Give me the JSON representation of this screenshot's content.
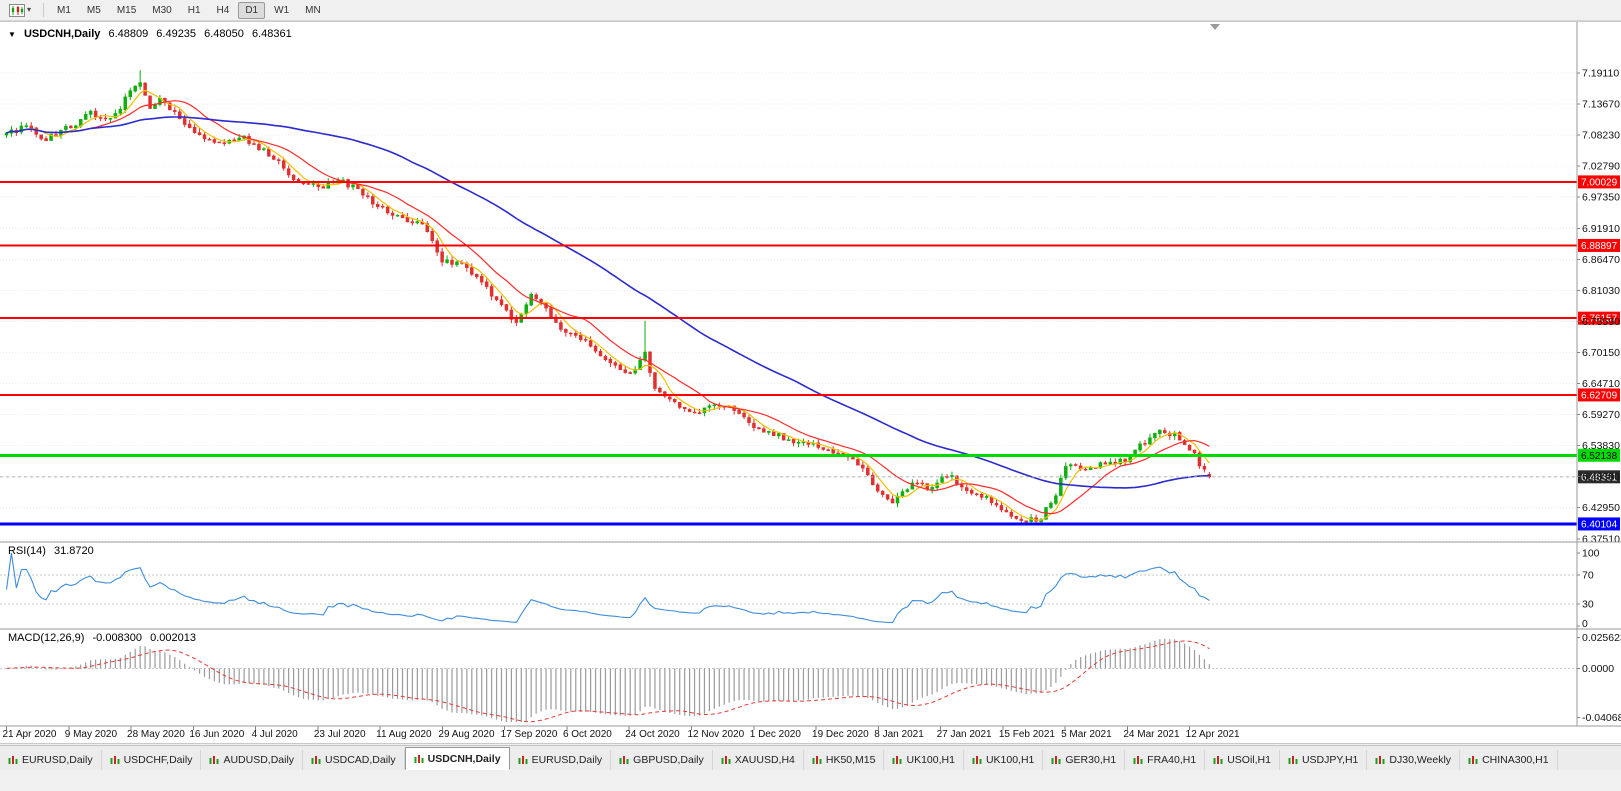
{
  "toolbar": {
    "chart_menu_caret": "▾",
    "timeframes": [
      "M1",
      "M5",
      "M15",
      "M30",
      "H1",
      "H4",
      "D1",
      "W1",
      "MN"
    ],
    "active_timeframe": "D1"
  },
  "chart": {
    "symbol_line": {
      "collapse_arrow": "▼",
      "title": "USDCNH,Daily",
      "open": "6.48809",
      "high": "6.49235",
      "low": "6.48050",
      "close": "6.48361"
    },
    "price_ticks": [
      "7.19110",
      "7.13670",
      "7.08230",
      "7.02790",
      "6.97350",
      "6.91910",
      "6.86470",
      "6.81030",
      "6.75590",
      "6.70150",
      "6.64710",
      "6.59270",
      "6.53830",
      "6.48390",
      "6.42950",
      "6.37510"
    ],
    "levels": [
      {
        "value": "7.00029",
        "price": 7.00029,
        "color": "#FF0000",
        "type": "resistance",
        "thickness": 2,
        "text_color": "#FFFFFF"
      },
      {
        "value": "6.88897",
        "price": 6.88897,
        "color": "#FF0000",
        "type": "resistance",
        "thickness": 2,
        "text_color": "#FFFFFF"
      },
      {
        "value": "6.76157",
        "price": 6.76157,
        "color": "#FF0000",
        "type": "resistance",
        "thickness": 2,
        "text_color": "#FFFFFF"
      },
      {
        "value": "6.62709",
        "price": 6.62709,
        "color": "#FF0000",
        "type": "resistance",
        "thickness": 2,
        "text_color": "#FFFFFF"
      },
      {
        "value": "6.52138",
        "price": 6.52138,
        "color": "#00DC00",
        "type": "support",
        "thickness": 3,
        "text_color": "#000000"
      },
      {
        "value": "6.40104",
        "price": 6.40104,
        "color": "#0000FF",
        "type": "support",
        "thickness": 3,
        "text_color": "#FFFFFF"
      }
    ],
    "current_price": {
      "value": "6.48361",
      "price": 6.48361,
      "badge_color": "#2B2B2B",
      "text_color": "#FFFFFF"
    },
    "date_axis": [
      "21 Apr 2020",
      "9 May 2020",
      "28 May 2020",
      "16 Jun 2020",
      "4 Jul 2020",
      "23 Jul 2020",
      "11 Aug 2020",
      "29 Aug 2020",
      "17 Sep 2020",
      "6 Oct 2020",
      "24 Oct 2020",
      "12 Nov 2020",
      "1 Dec 2020",
      "19 Dec 2020",
      "8 Jan 2021",
      "27 Jan 2021",
      "15 Feb 2021",
      "5 Mar 2021",
      "24 Mar 2021",
      "12 Apr 2021"
    ],
    "rsi": {
      "label": "RSI(14)",
      "value": "31.8720",
      "scale": [
        "100",
        "70",
        "30",
        "0"
      ],
      "level_lines": [
        70,
        30
      ],
      "color": "#3E8EDE"
    },
    "macd": {
      "label": "MACD(12,26,9)",
      "main_value": "-0.008300",
      "signal_value": "0.002013",
      "scale": [
        "0.025623",
        "0.0000",
        "-0.040688"
      ],
      "histogram_color": "#9B9B9B",
      "signal_color": "#E53935"
    }
  },
  "chart_data": {
    "type": "candlestick",
    "symbol": "USDCNH",
    "timeframe": "Daily",
    "title": "USDCNH,Daily 6.48809 6.49235 6.48050 6.48361",
    "ylim": [
      6.371,
      7.248
    ],
    "n_candles": 244,
    "ohlc_last": {
      "open": 6.48809,
      "high": 6.49235,
      "low": 6.4805,
      "close": 6.48361
    },
    "price_waypoints": [
      [
        0,
        7.082
      ],
      [
        4,
        7.101
      ],
      [
        7,
        7.072
      ],
      [
        10,
        7.088
      ],
      [
        13,
        7.097
      ],
      [
        17,
        7.122
      ],
      [
        21,
        7.108
      ],
      [
        25,
        7.158
      ],
      [
        27,
        7.175
      ],
      [
        29,
        7.128
      ],
      [
        31,
        7.148
      ],
      [
        34,
        7.118
      ],
      [
        38,
        7.086
      ],
      [
        43,
        7.066
      ],
      [
        47,
        7.08
      ],
      [
        50,
        7.068
      ],
      [
        54,
        7.042
      ],
      [
        58,
        7.006
      ],
      [
        63,
        6.992
      ],
      [
        67,
        7.003
      ],
      [
        71,
        6.986
      ],
      [
        76,
        6.953
      ],
      [
        80,
        6.936
      ],
      [
        84,
        6.93
      ],
      [
        88,
        6.864
      ],
      [
        92,
        6.856
      ],
      [
        95,
        6.832
      ],
      [
        98,
        6.802
      ],
      [
        101,
        6.772
      ],
      [
        103,
        6.756
      ],
      [
        106,
        6.8
      ],
      [
        109,
        6.781
      ],
      [
        112,
        6.737
      ],
      [
        116,
        6.726
      ],
      [
        120,
        6.697
      ],
      [
        124,
        6.672
      ],
      [
        126,
        6.666
      ],
      [
        129,
        6.7
      ],
      [
        131,
        6.642
      ],
      [
        134,
        6.616
      ],
      [
        139,
        6.591
      ],
      [
        143,
        6.614
      ],
      [
        147,
        6.601
      ],
      [
        151,
        6.573
      ],
      [
        155,
        6.561
      ],
      [
        159,
        6.546
      ],
      [
        164,
        6.539
      ],
      [
        168,
        6.521
      ],
      [
        172,
        6.506
      ],
      [
        176,
        6.463
      ],
      [
        179,
        6.436
      ],
      [
        183,
        6.473
      ],
      [
        187,
        6.466
      ],
      [
        190,
        6.488
      ],
      [
        194,
        6.461
      ],
      [
        198,
        6.446
      ],
      [
        202,
        6.424
      ],
      [
        205,
        6.406
      ],
      [
        209,
        6.412
      ],
      [
        212,
        6.456
      ],
      [
        214,
        6.501
      ],
      [
        218,
        6.496
      ],
      [
        222,
        6.506
      ],
      [
        226,
        6.511
      ],
      [
        230,
        6.546
      ],
      [
        233,
        6.566
      ],
      [
        236,
        6.556
      ],
      [
        238,
        6.536
      ],
      [
        240,
        6.521
      ],
      [
        241,
        6.506
      ],
      [
        242,
        6.493
      ],
      [
        243,
        6.48361
      ]
    ],
    "spikes": [
      {
        "i": 27,
        "high": 7.196
      },
      {
        "i": 129,
        "high": 6.757
      },
      {
        "i": 205,
        "low": 6.399
      },
      {
        "i": 209,
        "low": 6.3985
      }
    ],
    "noise_seed": 20210416,
    "noise_amp": 0.011,
    "colors": {
      "up": "#0FAF0F",
      "down": "#E03030"
    },
    "moving_averages": [
      {
        "period": 5,
        "color": "#F0C000"
      },
      {
        "period": 13,
        "color": "#FF2A2A"
      },
      {
        "period": 55,
        "color": "#2B2BD0"
      }
    ],
    "levels": {
      "red_lines": [
        7.00029,
        6.88897,
        6.76157,
        6.62709
      ],
      "green_line": 6.52138,
      "blue_line": 6.40104,
      "current_price": 6.48361
    },
    "rsi": {
      "period": 14,
      "last": 31.872,
      "overbought": 70,
      "oversold": 30
    },
    "macd": {
      "fast": 12,
      "slow": 26,
      "signal": 9,
      "last_main": -0.0083,
      "last_signal": 0.002013,
      "scale_max": 0.025623,
      "scale_min": -0.040688
    }
  },
  "tabs": {
    "items": [
      {
        "label": "EURUSD,Daily",
        "active": false
      },
      {
        "label": "USDCHF,Daily",
        "active": false
      },
      {
        "label": "AUDUSD,Daily",
        "active": false
      },
      {
        "label": "USDCAD,Daily",
        "active": false
      },
      {
        "label": "USDCNH,Daily",
        "active": true
      },
      {
        "label": "EURUSD,Daily",
        "active": false
      },
      {
        "label": "GBPUSD,Daily",
        "active": false
      },
      {
        "label": "XAUUSD,H4",
        "active": false
      },
      {
        "label": "HK50,M15",
        "active": false
      },
      {
        "label": "UK100,H1",
        "active": false
      },
      {
        "label": "UK100,H1",
        "active": false
      },
      {
        "label": "GER30,H1",
        "active": false
      },
      {
        "label": "FRA40,H1",
        "active": false
      },
      {
        "label": "USOil,H1",
        "active": false
      },
      {
        "label": "USDJPY,H1",
        "active": false
      },
      {
        "label": "DJ30,Weekly",
        "active": false
      },
      {
        "label": "CHINA300,H1",
        "active": false
      }
    ]
  }
}
